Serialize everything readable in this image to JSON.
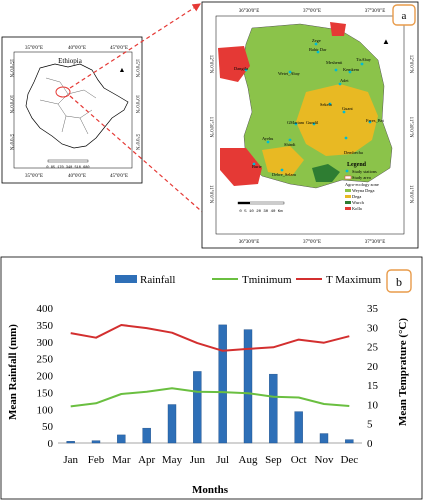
{
  "panel_a": {
    "badge": "a",
    "inset": {
      "country": "Ethiopia",
      "top_lon": [
        "35°0'0\"E",
        "40°0'0\"E",
        "45°0'0\"E"
      ],
      "bottom_lon": [
        "35°0'0\"E",
        "40°0'0\"E",
        "45°0'0\"E"
      ],
      "left_lat": [
        "15°0'0\"N",
        "10°0'0\"N",
        "5°0'0\"N"
      ],
      "right_lat": [
        "15°0'0\"N",
        "10°0'0\"N",
        "5°0'0\"N"
      ],
      "scale": "0  85 170   340   510   680"
    },
    "map": {
      "top_lon": [
        "36°30'0\"E",
        "37°0'0\"E",
        "37°30'0\"E"
      ],
      "bottom_lon": [
        "36°30'0\"E",
        "37°0'0\"E",
        "37°30'0\"E"
      ],
      "left_lat": [
        "12°0'0\"N",
        "11°30'0\"N",
        "11°0'0\"N"
      ],
      "right_lat": [
        "12°0'0\"N",
        "11°30'0\"N",
        "11°0'0\"N"
      ],
      "stations": [
        "Zege",
        "Bahir Dar",
        "TisAbay",
        "Meshenti",
        "Kemkem",
        "Adet",
        "Wetet_Abay",
        "Sekela",
        "Guant",
        "GMariam",
        "Gundil",
        "Feres_Bet",
        "Ayehu",
        "Shindi",
        "Dembecha",
        "Burie",
        "Debre_Selam",
        "Dangila"
      ],
      "legend": {
        "title": "Legend",
        "items": [
          "Study stations",
          "Study area"
        ],
        "zone_title": "Agro-ecology zone",
        "zones": [
          "Weyna Dega",
          "Dega",
          "Wurch",
          "Kolla"
        ]
      },
      "scale": "0  5 10   20   30   40 Km",
      "colors": {
        "weyna_dega": "#8bc34a",
        "dega": "#e8b923",
        "wurch": "#2e7d32",
        "kolla": "#e53935"
      }
    },
    "arrow_color": "#e53935"
  },
  "panel_b": {
    "badge": "b",
    "legend": [
      "Rainfall",
      "Tminimum",
      "T Maximum"
    ]
  },
  "chart_data": {
    "type": "bar+line",
    "categories": [
      "Jan",
      "Feb",
      "Mar",
      "Apr",
      "May",
      "Jun",
      "Jul",
      "Aug",
      "Sep",
      "Oct",
      "Nov",
      "Dec"
    ],
    "series": [
      {
        "name": "Rainfall",
        "type": "bar",
        "axis": "left",
        "color": "#2e6fb7",
        "values": [
          5,
          7,
          24,
          44,
          114,
          212,
          350,
          336,
          204,
          93,
          28,
          10
        ]
      },
      {
        "name": "Tminimum",
        "type": "line",
        "axis": "right",
        "color": "#6abf40",
        "values": [
          9.5,
          10.3,
          12.7,
          13.3,
          14.2,
          13.3,
          13.2,
          12.9,
          12.0,
          11.8,
          10.1,
          9.6
        ]
      },
      {
        "name": "T Maximum",
        "type": "line",
        "axis": "right",
        "color": "#d32f2f",
        "values": [
          28.5,
          27.3,
          30.6,
          29.8,
          28.6,
          25.9,
          23.9,
          24.4,
          24.8,
          26.8,
          26.0,
          27.7
        ]
      }
    ],
    "xlabel": "Months",
    "ylabel": "Mean Rainfall (mm)",
    "y2label": "Mean Temprature (°C)",
    "ylim": [
      0,
      400
    ],
    "y2lim": [
      0,
      35
    ],
    "yticks": [
      "0",
      "50",
      "100",
      "150",
      "200",
      "250",
      "300",
      "350",
      "400"
    ],
    "y2ticks": [
      "0",
      "5",
      "10",
      "15",
      "20",
      "25",
      "30",
      "35"
    ],
    "grid": false,
    "legend_position": "top"
  }
}
